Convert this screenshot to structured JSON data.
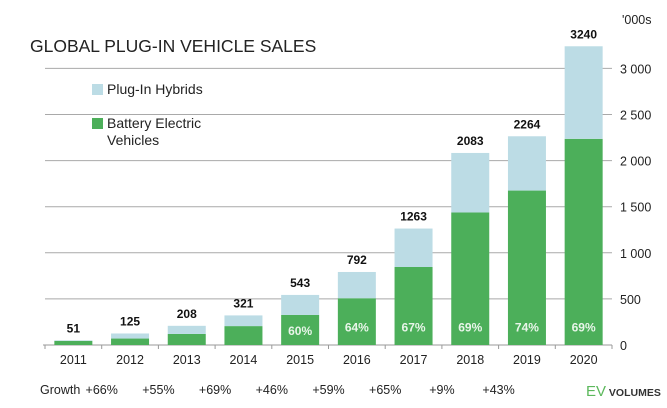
{
  "chart_data": {
    "type": "bar",
    "stacked": true,
    "title": "GLOBAL PLUG-IN VEHICLE SALES",
    "unit_label": "'000s",
    "categories": [
      "2011",
      "2012",
      "2013",
      "2014",
      "2015",
      "2016",
      "2017",
      "2018",
      "2019",
      "2020"
    ],
    "totals": [
      51,
      125,
      208,
      321,
      543,
      792,
      1263,
      2083,
      2264,
      3240
    ],
    "series": [
      {
        "name": "Battery Electric Vehicles",
        "color": "#4caf5a",
        "values": [
          45,
          70,
          120,
          205,
          326,
          507,
          846,
          1437,
          1675,
          2236
        ]
      },
      {
        "name": "Plug-In Hybrids",
        "color": "#bcdce5",
        "values": [
          6,
          55,
          88,
          116,
          217,
          285,
          417,
          646,
          589,
          1004
        ]
      }
    ],
    "bev_share_labels": [
      "",
      "",
      "",
      "",
      "60%",
      "64%",
      "67%",
      "69%",
      "74%",
      "69%"
    ],
    "yticks": [
      "0",
      "500",
      "1 000",
      "1 500",
      "2 000",
      "2 500",
      "3 000"
    ],
    "ytick_values": [
      0,
      500,
      1000,
      1500,
      2000,
      2500,
      3000
    ],
    "ylim": [
      0,
      3400
    ],
    "yaxis_side": "right",
    "grid": true,
    "legend_placement": "top-left",
    "growth_label": "Growth",
    "growth": [
      "+66%",
      "+55%",
      "+69%",
      "+46%",
      "+59%",
      "+65%",
      "+9%",
      "+43%"
    ],
    "logo": "EV VOLUMES"
  }
}
